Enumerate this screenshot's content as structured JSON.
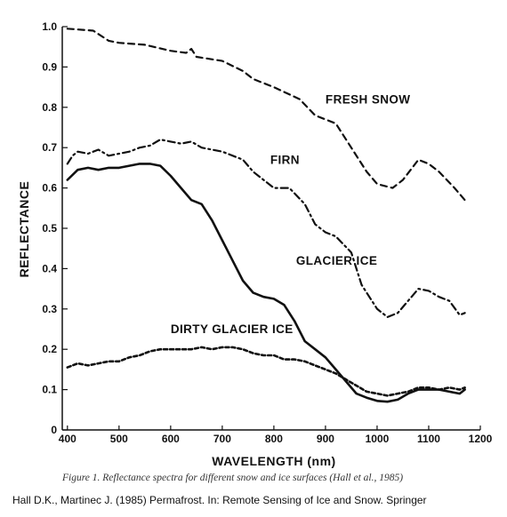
{
  "chart_data": {
    "type": "line",
    "xlabel": "WAVELENGTH (nm)",
    "ylabel": "REFLECTANCE",
    "xlim": [
      390,
      1200
    ],
    "ylim": [
      0,
      1.0
    ],
    "x_ticks": [
      400,
      500,
      600,
      700,
      800,
      900,
      1000,
      1100,
      1200
    ],
    "y_ticks": [
      0,
      0.1,
      0.2,
      0.3,
      0.4,
      0.5,
      0.6,
      0.7,
      0.8,
      0.9,
      1.0
    ],
    "grid": false,
    "series": [
      {
        "name": "FRESH SNOW",
        "label_at": [
          900,
          0.81
        ],
        "x": [
          400,
          450,
          480,
          500,
          550,
          600,
          630,
          640,
          650,
          700,
          740,
          760,
          800,
          850,
          880,
          920,
          950,
          980,
          1000,
          1030,
          1050,
          1080,
          1100,
          1120,
          1150,
          1170
        ],
        "values": [
          0.995,
          0.99,
          0.965,
          0.96,
          0.955,
          0.94,
          0.935,
          0.945,
          0.925,
          0.915,
          0.89,
          0.87,
          0.85,
          0.82,
          0.78,
          0.76,
          0.7,
          0.64,
          0.61,
          0.6,
          0.62,
          0.67,
          0.66,
          0.64,
          0.6,
          0.57
        ]
      },
      {
        "name": "FIRN",
        "label_at": [
          793,
          0.66
        ],
        "x": [
          400,
          410,
          420,
          440,
          460,
          480,
          500,
          520,
          540,
          560,
          580,
          600,
          620,
          640,
          660,
          700,
          740,
          760,
          780,
          800,
          830,
          860,
          880,
          900,
          920,
          950,
          970,
          1000,
          1020,
          1040,
          1060,
          1080,
          1100,
          1120,
          1140,
          1160,
          1170
        ],
        "values": [
          0.66,
          0.68,
          0.69,
          0.685,
          0.695,
          0.68,
          0.685,
          0.69,
          0.7,
          0.705,
          0.72,
          0.715,
          0.71,
          0.715,
          0.7,
          0.69,
          0.67,
          0.64,
          0.62,
          0.6,
          0.6,
          0.56,
          0.51,
          0.49,
          0.48,
          0.44,
          0.36,
          0.3,
          0.28,
          0.29,
          0.32,
          0.35,
          0.345,
          0.33,
          0.32,
          0.285,
          0.29
        ]
      },
      {
        "name": "GLACIER ICE",
        "label_at": [
          843,
          0.41
        ],
        "x": [
          400,
          420,
          440,
          460,
          480,
          500,
          520,
          540,
          560,
          580,
          600,
          620,
          640,
          660,
          680,
          700,
          720,
          740,
          760,
          780,
          800,
          820,
          840,
          860,
          880,
          900,
          920,
          940,
          960,
          980,
          1000,
          1020,
          1040,
          1060,
          1080,
          1100,
          1120,
          1140,
          1160,
          1170
        ],
        "values": [
          0.62,
          0.645,
          0.65,
          0.645,
          0.65,
          0.65,
          0.655,
          0.66,
          0.66,
          0.655,
          0.63,
          0.6,
          0.57,
          0.56,
          0.52,
          0.47,
          0.42,
          0.37,
          0.34,
          0.33,
          0.325,
          0.31,
          0.27,
          0.22,
          0.2,
          0.18,
          0.15,
          0.12,
          0.09,
          0.08,
          0.072,
          0.07,
          0.075,
          0.09,
          0.1,
          0.1,
          0.1,
          0.095,
          0.09,
          0.1
        ]
      },
      {
        "name": "DIRTY GLACIER ICE",
        "label_at": [
          600,
          0.24
        ],
        "x": [
          400,
          420,
          440,
          460,
          480,
          500,
          520,
          540,
          560,
          580,
          600,
          620,
          640,
          660,
          680,
          700,
          720,
          740,
          760,
          780,
          800,
          820,
          840,
          860,
          880,
          900,
          920,
          940,
          960,
          980,
          1000,
          1020,
          1040,
          1060,
          1080,
          1100,
          1120,
          1140,
          1160,
          1170
        ],
        "values": [
          0.155,
          0.165,
          0.16,
          0.165,
          0.17,
          0.17,
          0.18,
          0.185,
          0.195,
          0.2,
          0.2,
          0.2,
          0.2,
          0.205,
          0.2,
          0.205,
          0.205,
          0.2,
          0.19,
          0.185,
          0.185,
          0.175,
          0.175,
          0.17,
          0.16,
          0.15,
          0.14,
          0.125,
          0.11,
          0.095,
          0.09,
          0.085,
          0.09,
          0.095,
          0.105,
          0.105,
          0.1,
          0.105,
          0.1,
          0.105
        ]
      }
    ]
  },
  "caption": "Figure 1. Reflectance spectra for different snow and ice surfaces (Hall et al., 1985)",
  "citation": "Hall D.K., Martinec J. (1985) Permafrost. In: Remote Sensing of Ice and Snow. Springer"
}
